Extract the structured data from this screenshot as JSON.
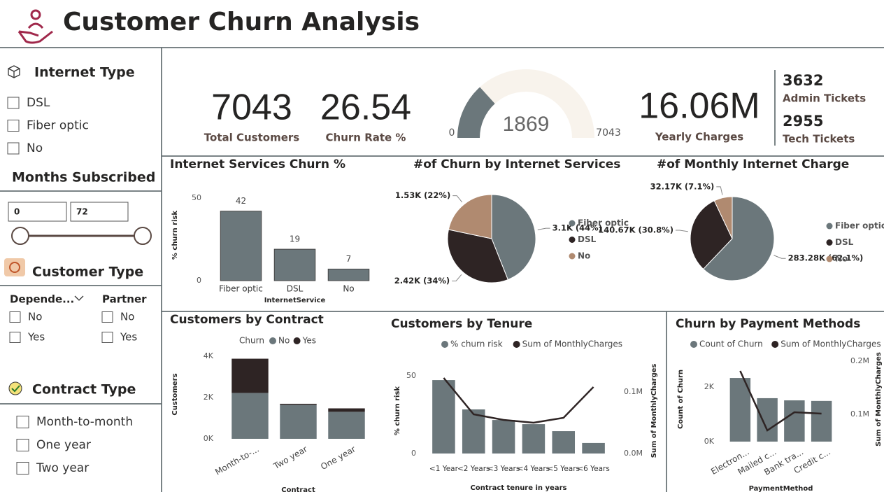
{
  "header": {
    "title": "Customer Churn Analysis"
  },
  "filters": {
    "internet_type": {
      "title": "Internet Type",
      "options": [
        "DSL",
        "Fiber optic",
        "No"
      ]
    },
    "months_subscribed": {
      "title": "Months Subscribed",
      "range": [
        0,
        72
      ]
    },
    "customer_type": {
      "title": "Customer Type",
      "groups": [
        {
          "title": "Depende...",
          "options": [
            "No",
            "Yes"
          ]
        },
        {
          "title": "Partner",
          "options": [
            "No",
            "Yes"
          ]
        }
      ]
    },
    "contract_type": {
      "title": "Contract Type",
      "options": [
        "Month-to-month",
        "One year",
        "Two year"
      ]
    }
  },
  "kpis": [
    {
      "value": 7043,
      "label": "Total Customers"
    },
    {
      "value": 26.54,
      "label": "Churn Rate %"
    },
    {
      "value": "16.06M",
      "label": "Yearly Charges"
    }
  ],
  "tickets": [
    {
      "value": 3632,
      "label": "Admin Tickets"
    },
    {
      "value": 2955,
      "label": "Tech Tickets"
    }
  ],
  "chart_data": [
    {
      "type": "gauge",
      "value": 1869,
      "ylim": [
        0,
        7043
      ],
      "color": "#6b777b",
      "track_color": "#f8f3ec"
    },
    {
      "type": "bar",
      "title": "Internet Services Churn %",
      "categories": [
        "Fiber optic",
        "DSL",
        "No"
      ],
      "values": [
        42,
        19,
        7
      ],
      "color": "#6b777b",
      "ylim": [
        0,
        55
      ],
      "yticks": [
        0,
        50
      ],
      "y_label": "% churn risk",
      "x_label": "InternetService",
      "data_labels": true
    },
    {
      "type": "pie",
      "title": "#of Churn by Internet Services",
      "categories": [
        "Fiber optic",
        "DSL",
        "No"
      ],
      "values": [
        3100,
        2420,
        1530
      ],
      "value_labels": [
        "3.1K (44%)",
        "2.42K (34%)",
        "1.53K (22%)"
      ],
      "colors": [
        "#6b777b",
        "#2e2424",
        "#b08a70"
      ]
    },
    {
      "type": "pie",
      "title": "#of Monthly Internet Charge",
      "categories": [
        "Fiber optic",
        "DSL",
        "No"
      ],
      "values": [
        283280,
        140670,
        32170
      ],
      "value_labels": [
        "283.28K (62.1%)",
        "140.67K (30.8%)",
        "32.17K (7.1%)"
      ],
      "colors": [
        "#6b777b",
        "#2e2424",
        "#b08a70"
      ]
    },
    {
      "type": "stacked_bar",
      "title": "Customers by Contract",
      "legend_title": "Churn",
      "categories": [
        "Month-to-...",
        "Two year",
        "One year"
      ],
      "series": [
        {
          "name": "No",
          "color": "#6b777b",
          "values": [
            2220,
            1647,
            1307
          ]
        },
        {
          "name": "Yes",
          "color": "#2e2424",
          "values": [
            1655,
            48,
            166
          ]
        }
      ],
      "ylim": [
        0,
        4300
      ],
      "yticks": [
        {
          "value": 0,
          "label": "0K"
        },
        {
          "value": 2000,
          "label": "2K"
        },
        {
          "value": 4000,
          "label": "4K"
        }
      ],
      "y_label": "Customers",
      "x_label": "Contract"
    },
    {
      "type": "bar_line",
      "title": "Customers by Tenure",
      "categories": [
        "<1 Year",
        "<2 Years",
        "<3 Years",
        "<4 Years",
        "<5 Years",
        "<6 Years"
      ],
      "series": [
        {
          "name": "% churn risk",
          "color": "#6b777b",
          "values": [
            47.3,
            28.4,
            21.6,
            18.9,
            14.4,
            6.8
          ]
        },
        {
          "name": "Sum of MonthlyCharges",
          "color": "#2e2424",
          "axis": "y2",
          "values": [
            122700,
            63600,
            54500,
            50000,
            58000,
            108000
          ]
        }
      ],
      "ylim": [
        0,
        55
      ],
      "yticks": [
        0,
        50
      ],
      "y2lim": [
        0,
        138600
      ],
      "y2ticks": [
        {
          "value": 0,
          "label": "0.0M"
        },
        {
          "value": 100000,
          "label": "0.1M"
        }
      ],
      "y_label": "% churn risk",
      "y2_label": "Sum of MonthlyCharges",
      "x_label": "Contract tenure in years"
    },
    {
      "type": "bar_line",
      "title": "Churn by Payment Methods",
      "categories": [
        "Electron...",
        "Mailed c...",
        "Bank tra...",
        "Credit c..."
      ],
      "series": [
        {
          "name": "Count of Churn",
          "color": "#6b777b",
          "values": [
            2330,
            1590,
            1510,
            1490
          ]
        },
        {
          "name": "Sum of MonthlyCharges",
          "color": "#2e2424",
          "axis": "y2",
          "values": [
            181600,
            69700,
            103900,
            101300
          ]
        }
      ],
      "ylim": [
        0,
        3100
      ],
      "yticks": [
        {
          "value": 0,
          "label": "0K"
        },
        {
          "value": 2000,
          "label": "2K"
        }
      ],
      "y2lim": [
        48700,
        207900
      ],
      "y2ticks": [
        {
          "value": 100000,
          "label": "0.1M"
        },
        {
          "value": 200000,
          "label": "0.2M"
        }
      ],
      "y_label": "Count of Churn",
      "y2_label": "Sum of MonthlyCharges",
      "x_label": "PaymentMethod"
    }
  ]
}
